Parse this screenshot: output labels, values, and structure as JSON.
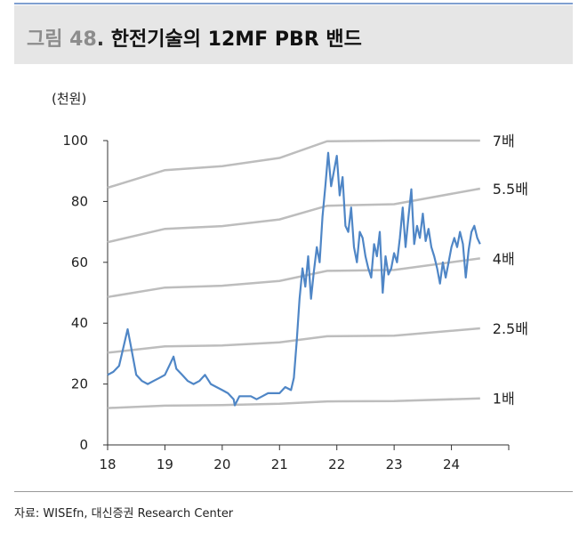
{
  "figure": {
    "prefix": "그림 48",
    "separator": ".",
    "title": "한전기술의 12MF PBR 밴드",
    "unit": "(천원)",
    "source": "자료: WISEfn, 대신증권 Research Center"
  },
  "colors": {
    "price": "#4f86c6",
    "band": "#bdbdbd",
    "axis": "#333333",
    "header_bg": "#e6e6e6"
  },
  "chart_data": {
    "type": "line",
    "x_ticks": [
      "18",
      "19",
      "20",
      "21",
      "22",
      "23",
      "24"
    ],
    "y_ticks": [
      "0",
      "20",
      "40",
      "60",
      "80",
      "100"
    ],
    "ylim": [
      0,
      100
    ],
    "xlim": [
      2018.0,
      2025.0
    ],
    "grid": false,
    "band_points_x": [
      2018.0,
      2019.0,
      2020.0,
      2021.0,
      2021.83,
      2023.0,
      2024.5
    ],
    "bands": [
      {
        "name": "7배",
        "values": [
          84.5,
          90.3,
          91.6,
          94.3,
          99.8,
          100.4,
          101.8
        ]
      },
      {
        "name": "5.5배",
        "values": [
          66.6,
          71.0,
          71.9,
          74.1,
          78.6,
          79.1,
          84.2
        ]
      },
      {
        "name": "4배",
        "values": [
          48.6,
          51.7,
          52.3,
          53.9,
          57.2,
          57.5,
          61.3
        ]
      },
      {
        "name": "2.5배",
        "values": [
          30.3,
          32.4,
          32.7,
          33.7,
          35.7,
          35.9,
          38.3
        ]
      },
      {
        "name": "1배",
        "values": [
          12.1,
          12.9,
          13.1,
          13.5,
          14.3,
          14.4,
          15.3
        ]
      }
    ],
    "price_series": {
      "x": [
        2018.0,
        2018.1,
        2018.2,
        2018.3,
        2018.35,
        2018.4,
        2018.5,
        2018.6,
        2018.7,
        2018.8,
        2018.9,
        2019.0,
        2019.1,
        2019.15,
        2019.2,
        2019.3,
        2019.4,
        2019.5,
        2019.6,
        2019.7,
        2019.8,
        2019.9,
        2020.0,
        2020.1,
        2020.2,
        2020.22,
        2020.3,
        2020.4,
        2020.5,
        2020.6,
        2020.7,
        2020.8,
        2020.9,
        2021.0,
        2021.1,
        2021.2,
        2021.25,
        2021.3,
        2021.35,
        2021.4,
        2021.45,
        2021.5,
        2021.55,
        2021.6,
        2021.65,
        2021.7,
        2021.75,
        2021.8,
        2021.85,
        2021.9,
        2021.95,
        2022.0,
        2022.05,
        2022.1,
        2022.15,
        2022.2,
        2022.25,
        2022.3,
        2022.35,
        2022.4,
        2022.45,
        2022.5,
        2022.55,
        2022.6,
        2022.65,
        2022.7,
        2022.75,
        2022.8,
        2022.85,
        2022.9,
        2022.95,
        2023.0,
        2023.05,
        2023.1,
        2023.15,
        2023.2,
        2023.25,
        2023.3,
        2023.35,
        2023.4,
        2023.45,
        2023.5,
        2023.55,
        2023.6,
        2023.65,
        2023.7,
        2023.75,
        2023.8,
        2023.85,
        2023.9,
        2023.95,
        2024.0,
        2024.05,
        2024.1,
        2024.15,
        2024.2,
        2024.25,
        2024.3,
        2024.35,
        2024.4,
        2024.45,
        2024.5
      ],
      "values": [
        23,
        24,
        26,
        34,
        38,
        33,
        23,
        21,
        20,
        21,
        22,
        23,
        27,
        29,
        25,
        23,
        21,
        20,
        21,
        23,
        20,
        19,
        18,
        17,
        15,
        13,
        16,
        16,
        16,
        15,
        16,
        17,
        17,
        17,
        19,
        18,
        22,
        34,
        48,
        58,
        52,
        62,
        48,
        57,
        65,
        60,
        75,
        85,
        96,
        85,
        90,
        95,
        82,
        88,
        72,
        70,
        78,
        65,
        60,
        70,
        68,
        62,
        58,
        55,
        66,
        62,
        70,
        50,
        62,
        56,
        58,
        63,
        60,
        68,
        78,
        65,
        75,
        84,
        66,
        72,
        68,
        76,
        67,
        71,
        65,
        62,
        58,
        53,
        60,
        55,
        60,
        65,
        68,
        65,
        70,
        66,
        55,
        64,
        70,
        72,
        68,
        66
      ]
    }
  }
}
